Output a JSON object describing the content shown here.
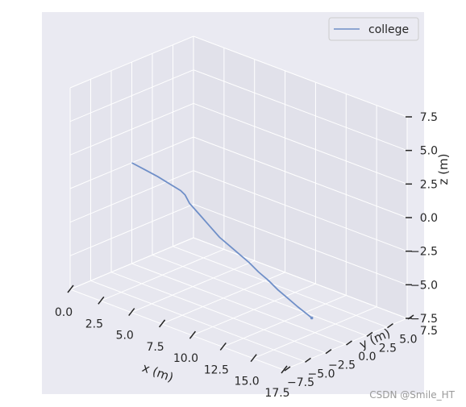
{
  "chart_data": {
    "type": "line",
    "projection": "3d",
    "xlabel": "x (m)",
    "ylabel": "y (m)",
    "zlabel": "z (m)",
    "xlim": [
      0,
      17.5
    ],
    "ylim": [
      -7.5,
      7.5
    ],
    "zlim": [
      -7.5,
      7.5
    ],
    "xticks": [
      "0.0",
      "2.5",
      "5.0",
      "7.5",
      "10.0",
      "12.5",
      "15.0",
      "17.5"
    ],
    "yticks": [
      "−7.5",
      "−5.0",
      "−2.5",
      "0.0",
      "2.5",
      "5.0",
      "7.5"
    ],
    "zticks": [
      "−7.5",
      "−5.0",
      "−2.5",
      "0.0",
      "2.5",
      "5.0",
      "7.5"
    ],
    "grid": true,
    "legend": "top-right",
    "series": [
      {
        "name": "college",
        "color": "#6f8fc8",
        "points": [
          [
            0.0,
            0.0,
            0.0
          ],
          [
            1.0,
            0.1,
            -0.2
          ],
          [
            2.0,
            0.2,
            -0.4
          ],
          [
            3.0,
            0.1,
            -0.55
          ],
          [
            4.0,
            0.0,
            -0.7
          ],
          [
            4.5,
            -0.2,
            -0.8
          ],
          [
            5.0,
            -0.4,
            -1.2
          ],
          [
            6.0,
            -0.7,
            -1.6
          ],
          [
            7.0,
            -0.9,
            -2.1
          ],
          [
            8.0,
            -1.2,
            -2.5
          ],
          [
            9.0,
            -1.5,
            -2.7
          ],
          [
            10.0,
            -1.8,
            -2.9
          ],
          [
            11.0,
            -2.1,
            -3.1
          ],
          [
            12.0,
            -2.4,
            -3.4
          ],
          [
            13.0,
            -2.7,
            -3.6
          ],
          [
            14.0,
            -3.0,
            -3.9
          ],
          [
            15.0,
            -3.3,
            -4.1
          ],
          [
            16.0,
            -3.6,
            -4.3
          ],
          [
            17.0,
            -3.9,
            -4.45
          ],
          [
            17.5,
            -4.1,
            -4.5
          ]
        ]
      }
    ]
  },
  "watermark": "CSDN @Smile_HT"
}
